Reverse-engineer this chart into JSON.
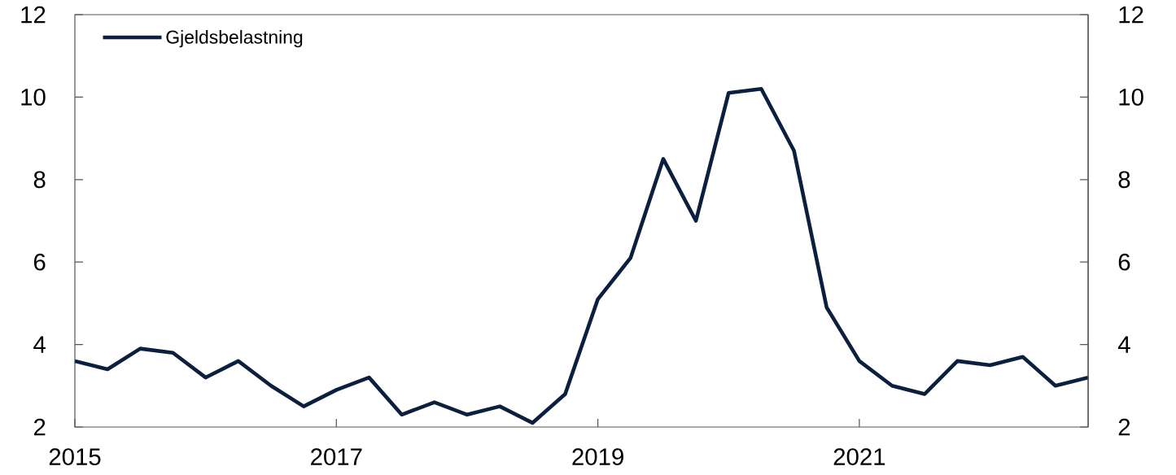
{
  "chart_data": {
    "type": "line",
    "x": [
      "2015-01",
      "2015-04",
      "2015-07",
      "2015-10",
      "2016-01",
      "2016-04",
      "2016-07",
      "2016-10",
      "2017-01",
      "2017-04",
      "2017-07",
      "2017-10",
      "2018-01",
      "2018-04",
      "2018-07",
      "2018-10",
      "2019-01",
      "2019-04",
      "2019-07",
      "2019-10",
      "2020-01",
      "2020-04",
      "2020-07",
      "2020-10",
      "2021-01",
      "2021-04",
      "2021-07",
      "2021-10",
      "2022-01",
      "2022-04",
      "2022-07",
      "2022-10"
    ],
    "series": [
      {
        "name": "Gjeldsbelastning",
        "color": "#0b1f3f",
        "values": [
          3.6,
          3.4,
          3.9,
          3.8,
          3.2,
          3.6,
          3.0,
          2.5,
          2.9,
          3.2,
          2.3,
          2.6,
          2.3,
          2.5,
          2.1,
          2.8,
          5.1,
          6.1,
          8.5,
          7.0,
          10.1,
          10.2,
          8.7,
          4.9,
          3.6,
          3.0,
          2.8,
          3.6,
          3.5,
          3.7,
          3.0,
          3.2
        ]
      }
    ],
    "xlim": [
      "2015-01",
      "2022-10"
    ],
    "xticks": [
      "2015",
      "2017",
      "2019",
      "2021"
    ],
    "ylim": [
      2,
      12
    ],
    "yticks": [
      2,
      4,
      6,
      8,
      10,
      12
    ],
    "y2lim": [
      2,
      12
    ],
    "y2ticks": [
      2,
      4,
      6,
      8,
      10,
      12
    ],
    "legend": "top left",
    "line_style": "solid"
  }
}
